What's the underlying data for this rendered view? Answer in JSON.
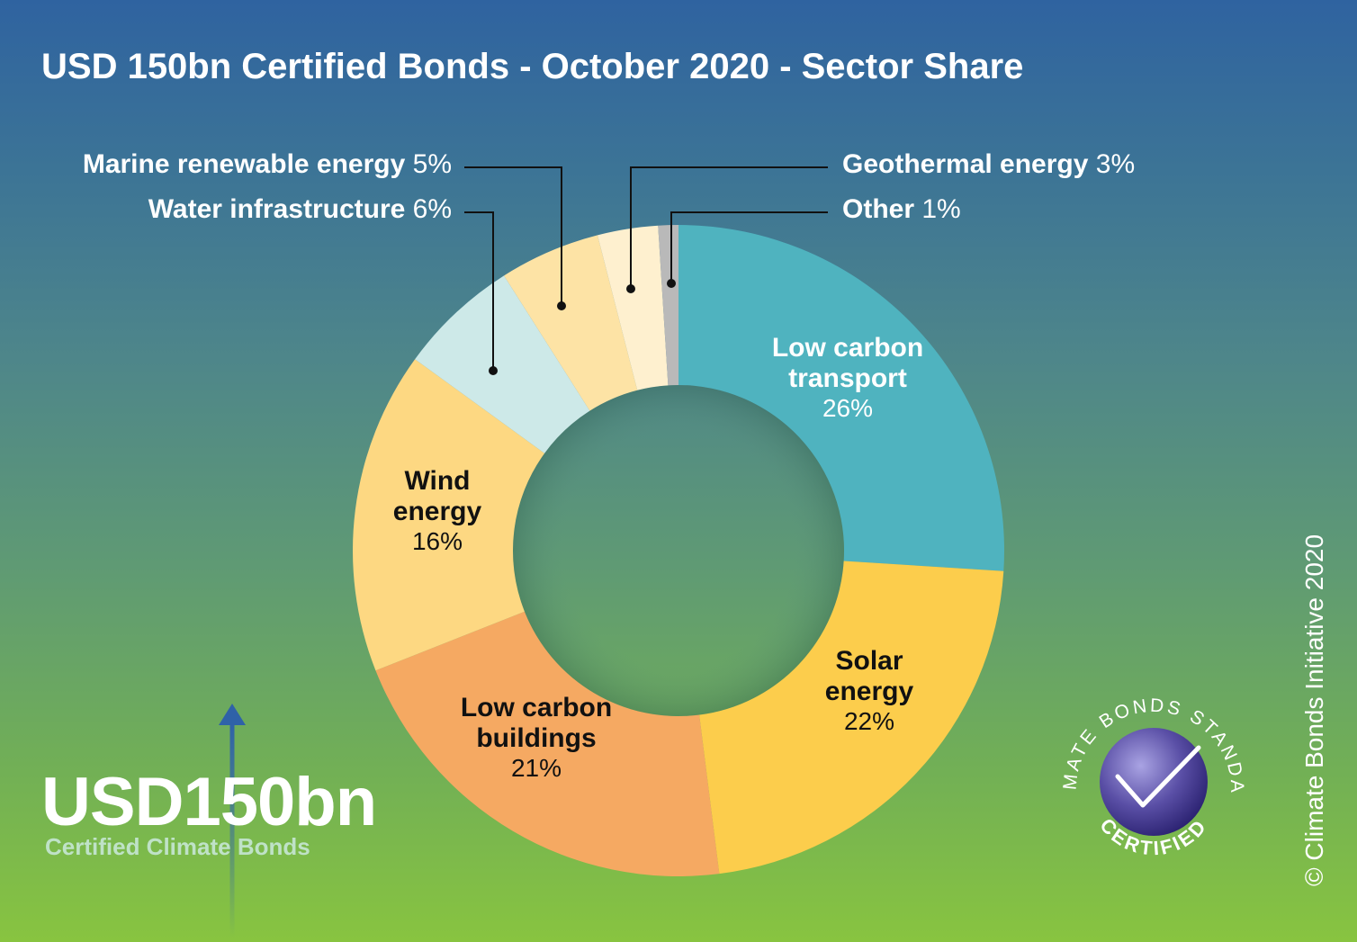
{
  "chart_data": {
    "type": "pie",
    "title": "USD 150bn Certified Bonds - October 2020 - Sector Share",
    "slices": [
      {
        "name": "Low carbon transport",
        "lines": [
          "Low carbon",
          "transport"
        ],
        "value": 26,
        "label": "26%",
        "color": "#4fb3bf"
      },
      {
        "name": "Solar energy",
        "lines": [
          "Solar",
          "energy"
        ],
        "value": 22,
        "label": "22%",
        "color": "#fccd4c"
      },
      {
        "name": "Low carbon buildings",
        "lines": [
          "Low carbon",
          "buildings"
        ],
        "value": 21,
        "label": "21%",
        "color": "#f5a962"
      },
      {
        "name": "Wind energy",
        "lines": [
          "Wind",
          "energy"
        ],
        "value": 16,
        "label": "16%",
        "color": "#fdd882"
      },
      {
        "name": "Water infrastructure",
        "value": 6,
        "label": "6%",
        "color": "#cde9e8"
      },
      {
        "name": "Marine renewable energy",
        "value": 5,
        "label": "5%",
        "color": "#fde3a5"
      },
      {
        "name": "Geothermal energy",
        "value": 3,
        "label": "3%",
        "color": "#fef0cf"
      },
      {
        "name": "Other",
        "value": 1,
        "label": "1%",
        "color": "#b9b9b9"
      }
    ]
  },
  "summary": {
    "amount": "USD150bn",
    "subtitle": "Certified Climate Bonds"
  },
  "copyright": "© Climate Bonds Initiative 2020",
  "seal": {
    "arc_text": "CLIMATE BONDS STANDARD",
    "bottom_text": "CERTIFIED",
    "icon": "checkmark-icon"
  }
}
